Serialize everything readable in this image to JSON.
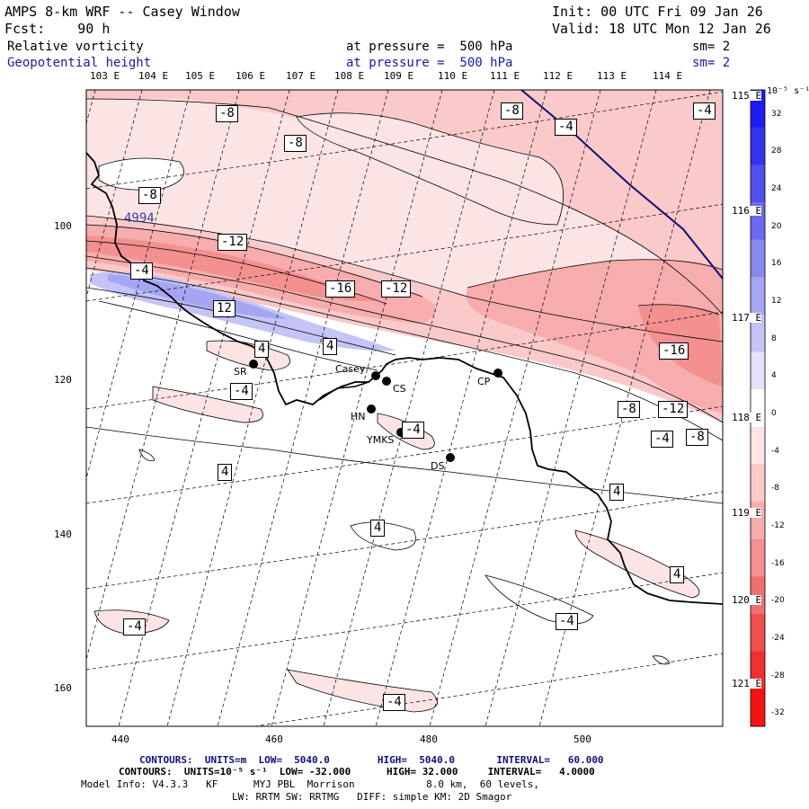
{
  "header": {
    "title": "AMPS 8-km WRF -- Casey Window",
    "init": "Init: 00 UTC Fri 09 Jan 26",
    "fcst": "Fcst:    90 h",
    "valid": "Valid: 18 UTC Mon 12 Jan 26",
    "field1": {
      "name": "Relative vorticity",
      "level": "at pressure =  500 hPa",
      "sm": "sm= 2"
    },
    "field2": {
      "name": "Geopotential height",
      "level": "at pressure =  500 hPa",
      "sm": "sm= 2"
    }
  },
  "longitude_labels": [
    "103 E",
    "104 E",
    "105 E",
    "106 E",
    "107 E",
    "108 E",
    "109 E",
    "110 E",
    "111 E",
    "112 E",
    "113 E",
    "114 E"
  ],
  "latitude_labels": [
    "115 E",
    "116 E",
    "117 E",
    "118 E",
    "119 E",
    "120 E",
    "121 E"
  ],
  "x_axis": {
    "ticks": [
      "440",
      "460",
      "480",
      "500"
    ]
  },
  "y_axis": {
    "ticks": [
      "100",
      "120",
      "140",
      "160"
    ]
  },
  "colorbar": {
    "unit": "10⁻⁵ s⁻¹",
    "ticks": [
      "32",
      "28",
      "24",
      "20",
      "16",
      "12",
      "8",
      "4",
      "0",
      "-4",
      "-8",
      "-12",
      "-16",
      "-20",
      "-24",
      "-28",
      "-32"
    ],
    "colors": [
      "#1c1cf2",
      "#3434f0",
      "#5050ee",
      "#6a6aee",
      "#8888ee",
      "#a5a5f2",
      "#c4c4f6",
      "#e2e2fb",
      "#ffffff",
      "#fce4e4",
      "#fac9c9",
      "#f7adad",
      "#f49090",
      "#f07070",
      "#ee5050",
      "#ee3030",
      "#f21414"
    ]
  },
  "contour_labels": [
    "-8",
    "-8",
    "-4",
    "-8",
    "-4",
    "-8",
    "-12",
    "-4",
    "-16",
    "-12",
    "12",
    "4",
    "4",
    "-4",
    "-16",
    "-8",
    "-12",
    "-4",
    "-8",
    "4",
    "4",
    "4",
    "-4",
    "4",
    "-4",
    "-4",
    "-4"
  ],
  "height_label": "4994",
  "stations": [
    "SR",
    "Casey",
    "CS",
    "CP",
    "HN",
    "YMKS",
    "DS"
  ],
  "footer": {
    "line1": "CONTOURS:  UNITS=m  LOW=  5040.0        HIGH=  5040.0       INTERVAL=   60.000",
    "line2": "CONTOURS:  UNITS=10⁻⁵ s⁻¹  LOW= -32.000      HIGH= 32.000     INTERVAL=   4.0000",
    "line3": "Model Info: V4.3.3   KF      MYJ PBL  Morrison            8.0 km,  60 levels,",
    "line4": "LW: RRTM SW: RRTMG   DIFF: simple KM: 2D Smagor"
  }
}
